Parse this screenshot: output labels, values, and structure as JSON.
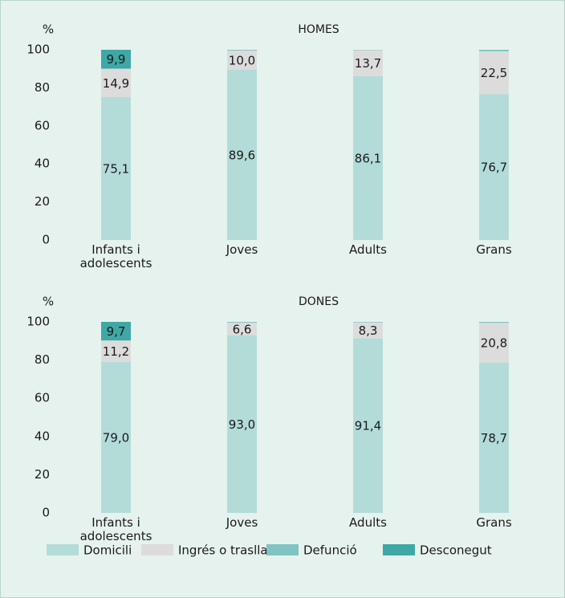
{
  "chart_data": [
    {
      "type": "stacked_bar",
      "title": "HOMES",
      "y_label": "%",
      "categories": [
        "Infants i adolescents",
        "Joves",
        "Adults",
        "Grans"
      ],
      "ylim": [
        0,
        100
      ],
      "yticks": [
        0,
        20,
        40,
        60,
        80,
        100
      ],
      "series": [
        {
          "name": "Domicili",
          "color": "#b3dcd9",
          "values": [
            75.1,
            89.6,
            86.1,
            76.7
          ],
          "value_labels": [
            "75,1",
            "89,6",
            "86,1",
            "76,7"
          ]
        },
        {
          "name": "Ingrés o trasllat",
          "color": "#dcdcdc",
          "values": [
            14.9,
            10.0,
            13.7,
            22.5
          ],
          "value_labels": [
            "14,9",
            "10,0",
            "13,7",
            "22,5"
          ]
        },
        {
          "name": "Defunció",
          "color": "#7fc4c2",
          "values": [
            0.1,
            0.4,
            0.2,
            0.8
          ],
          "value_labels": [
            null,
            null,
            null,
            null
          ]
        },
        {
          "name": "Desconegut",
          "color": "#3fa8a6",
          "values": [
            9.9,
            0,
            0,
            0
          ],
          "value_labels": [
            "9,9",
            null,
            null,
            null
          ]
        }
      ]
    },
    {
      "type": "stacked_bar",
      "title": "DONES",
      "y_label": "%",
      "categories": [
        "Infants i adolescents",
        "Joves",
        "Adults",
        "Grans"
      ],
      "ylim": [
        0,
        100
      ],
      "yticks": [
        0,
        20,
        40,
        60,
        80,
        100
      ],
      "series": [
        {
          "name": "Domicili",
          "color": "#b3dcd9",
          "values": [
            79.0,
            93.0,
            91.4,
            78.7
          ],
          "value_labels": [
            "79,0",
            "93,0",
            "91,4",
            "78,7"
          ]
        },
        {
          "name": "Ingrés o trasllat",
          "color": "#dcdcdc",
          "values": [
            11.2,
            6.6,
            8.3,
            20.8
          ],
          "value_labels": [
            "11,2",
            "6,6",
            "8,3",
            "20,8"
          ]
        },
        {
          "name": "Defunció",
          "color": "#7fc4c2",
          "values": [
            0.1,
            0.4,
            0.3,
            0.5
          ],
          "value_labels": [
            null,
            null,
            null,
            null
          ]
        },
        {
          "name": "Desconegut",
          "color": "#3fa8a6",
          "values": [
            9.7,
            0,
            0,
            0
          ],
          "value_labels": [
            "9,7",
            null,
            null,
            null
          ]
        }
      ]
    }
  ]
}
